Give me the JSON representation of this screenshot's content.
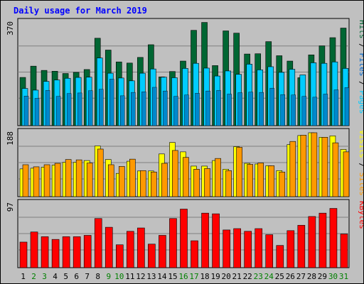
{
  "chart_data": {
    "type": "bar",
    "title": "Daily usage for March 2019",
    "categories": [
      "1",
      "2",
      "3",
      "4",
      "5",
      "6",
      "7",
      "8",
      "9",
      "10",
      "11",
      "12",
      "13",
      "14",
      "15",
      "16",
      "17",
      "18",
      "19",
      "20",
      "21",
      "22",
      "23",
      "24",
      "25",
      "26",
      "27",
      "28",
      "29",
      "30",
      "31"
    ],
    "weekend_days": [
      "2",
      "3",
      "9",
      "10",
      "16",
      "17",
      "23",
      "24",
      "30",
      "31"
    ],
    "panels": [
      {
        "ymax_label": "370",
        "ylim": [
          0,
          370
        ],
        "axis_label": [
          "Pages",
          "Files",
          "Hits"
        ],
        "series": [
          {
            "name": "Hits",
            "color": "#006633",
            "values": [
              171,
              211,
              196,
              193,
              185,
              189,
              199,
              310,
              268,
              226,
              222,
              242,
              287,
              173,
              192,
              229,
              338,
              366,
              213,
              336,
              328,
              254,
              255,
              298,
              248,
              229,
              170,
              251,
              283,
              312,
              346
            ]
          },
          {
            "name": "Files",
            "color": "#00ccff",
            "values": [
              105,
              97,
              125,
              104,
              114,
              116,
              124,
              129,
              165,
              106,
              118,
              120,
              136,
              123,
              104,
              109,
              115,
              123,
              125,
              112,
              117,
              119,
              118,
              133,
              110,
              109,
              104,
              101,
              112,
              127,
              135
            ]
          },
          {
            "name": "Pages",
            "color": "#00ccff",
            "values": [
              132,
              126,
              157,
              162,
              168,
              171,
              172,
              240,
              186,
              169,
              159,
              186,
              201,
              172,
              170,
              203,
              221,
              204,
              176,
              194,
              182,
              218,
              198,
              209,
              189,
              200,
              180,
              223,
              221,
              226,
              203
            ]
          }
        ]
      },
      {
        "ymax_label": "188",
        "ylim": [
          0,
          188
        ],
        "axis_label": [
          "Sites",
          "Visits"
        ],
        "series": [
          {
            "name": "Visits",
            "color": "#ffff00",
            "values": [
              80,
              82,
              85,
              91,
              99,
              99,
              104,
              146,
              107,
              67,
              102,
              74,
              74,
              123,
              156,
              129,
              88,
              88,
              104,
              79,
              144,
              96,
              94,
              89,
              75,
              150,
              176,
              184,
              171,
              175,
              136
            ]
          },
          {
            "name": "Sites",
            "color": "#ff9900",
            "values": [
              92,
              86,
              92,
              96,
              107,
              106,
              97,
              137,
              92,
              87,
              108,
              75,
              71,
              96,
              133,
              113,
              79,
              81,
              110,
              75,
              142,
              93,
              97,
              89,
              71,
              159,
              177,
              184,
              171,
              155,
              129
            ]
          }
        ]
      },
      {
        "ymax_label": "97",
        "ylim": [
          0,
          97
        ],
        "axis_label": [
          "KBytes"
        ],
        "series": [
          {
            "name": "KBytes",
            "color": "#ff0000",
            "values": [
              38,
              53,
              46,
              42,
              46,
              46,
              48,
              73,
              60,
              34,
              54,
              59,
              35,
              48,
              73,
              87,
              40,
              81,
              80,
              56,
              58,
              54,
              58,
              49,
              33,
              55,
              63,
              76,
              81,
              88,
              50
            ]
          }
        ]
      }
    ],
    "grid": true
  }
}
